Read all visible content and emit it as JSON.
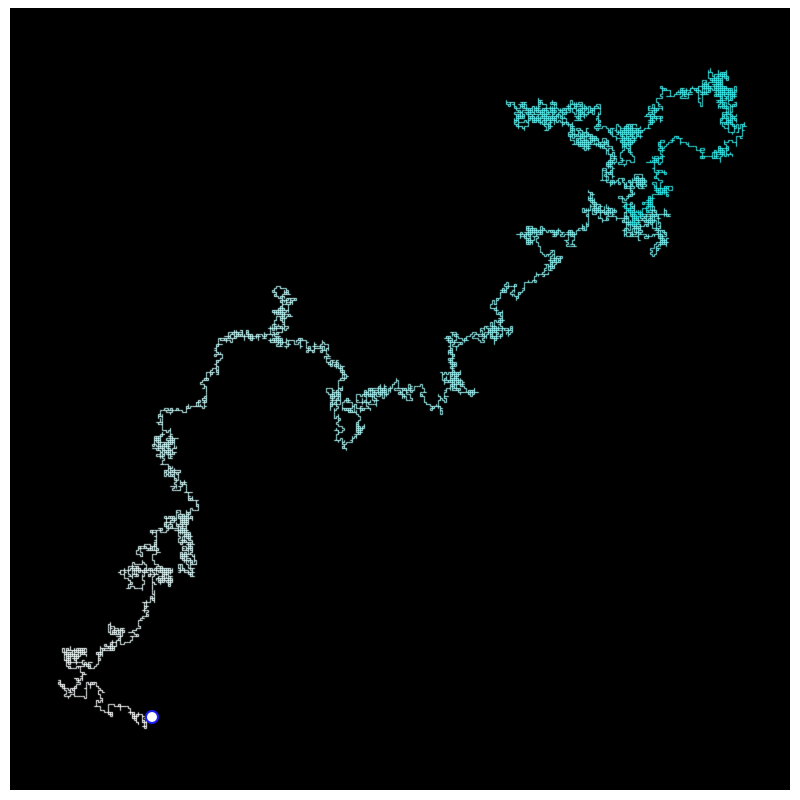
{
  "scene": {
    "background_color": "#000000",
    "frame_color": "#ffffff",
    "walk_color_start": "#ffffff",
    "walk_color_end": "#27f4f4",
    "marker_ring_color": "#1e1ef0",
    "marker_fill_color": "#ffffff"
  }
}
